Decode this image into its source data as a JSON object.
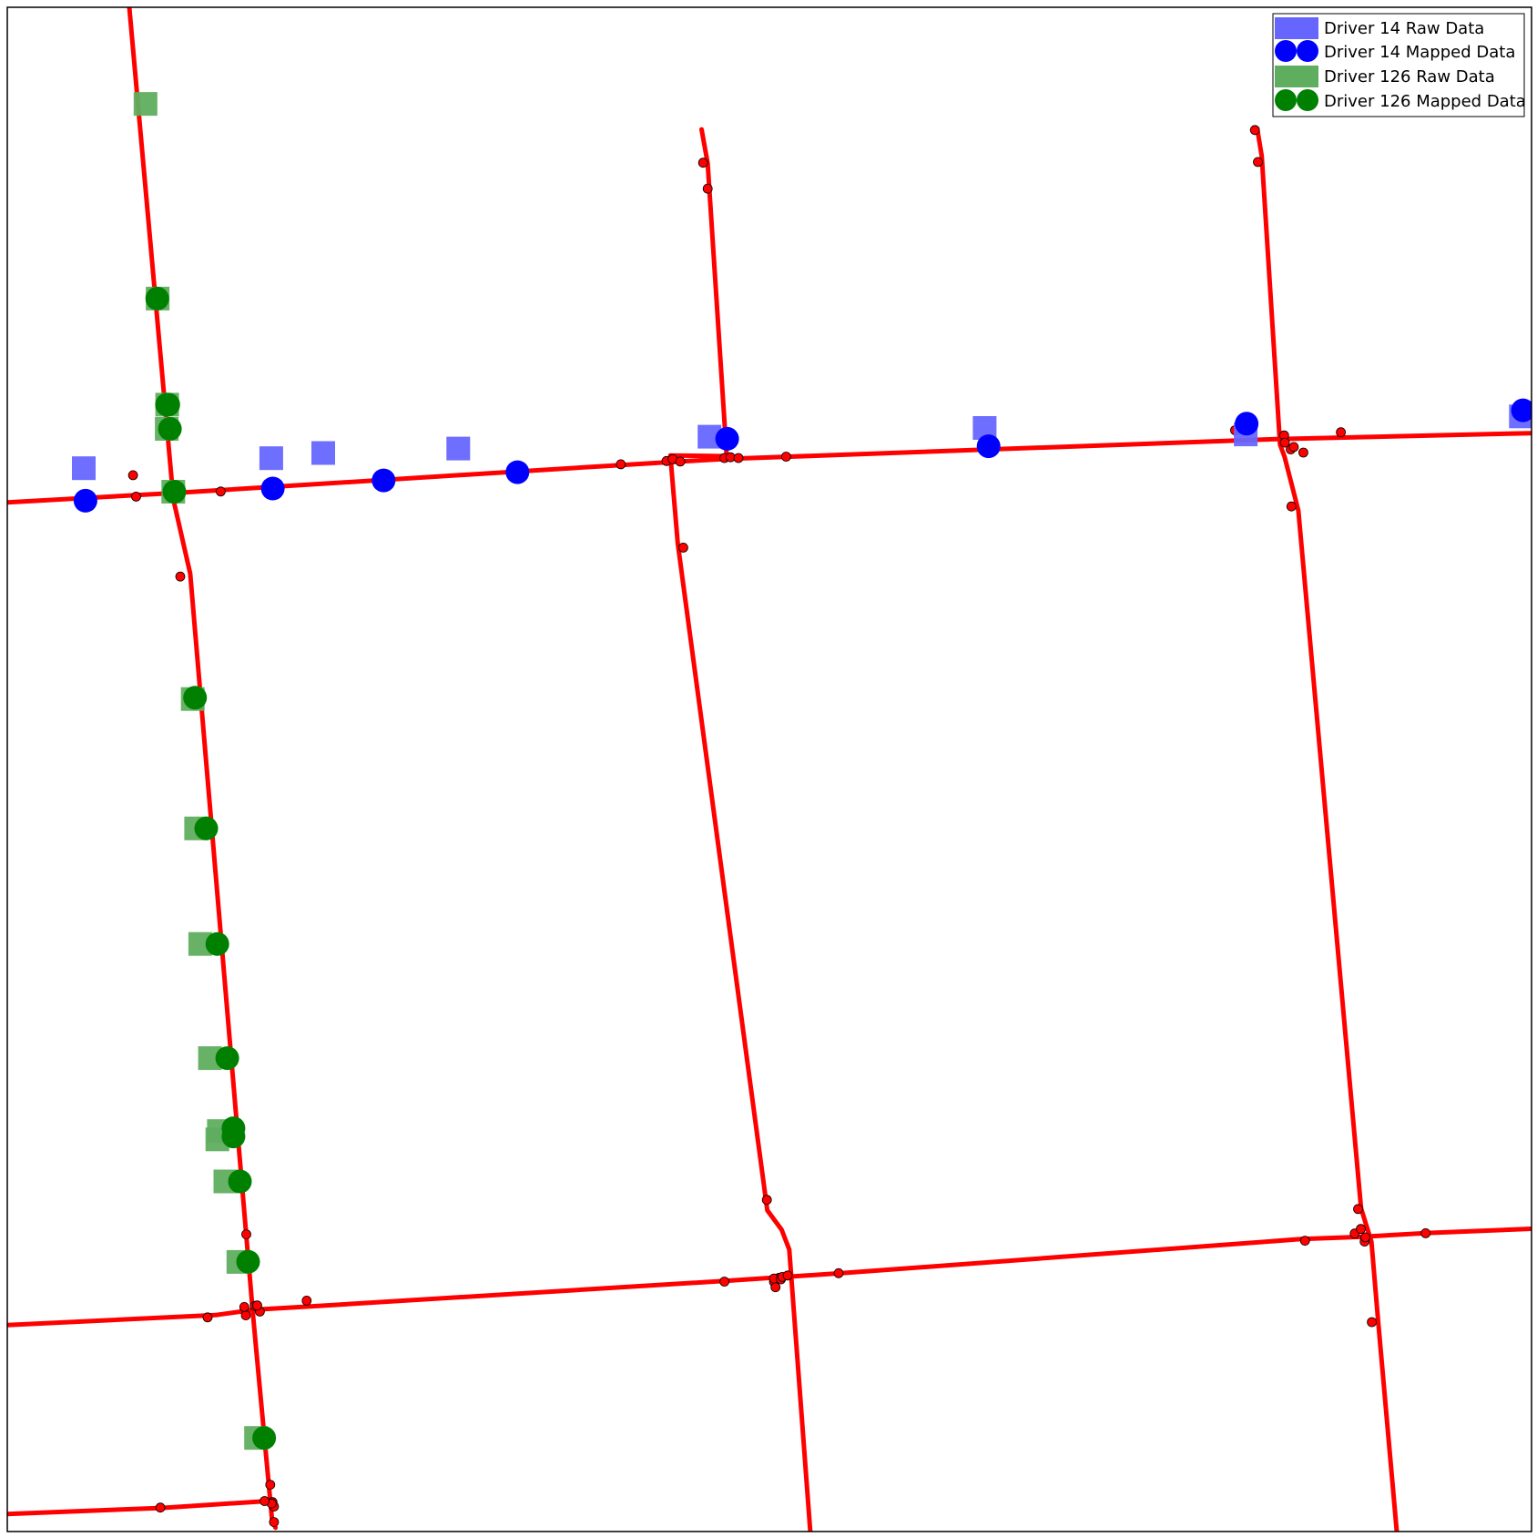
{
  "chart_data": {
    "type": "scatter",
    "title": "",
    "xlabel": "",
    "ylabel": "",
    "xlim": [
      0,
      1000
    ],
    "ylim": [
      0,
      1000
    ],
    "grid": false,
    "axes_ticks": false,
    "legend": {
      "placement": "top-right",
      "entries": [
        {
          "label": "Driver 14 Raw Data",
          "marker": "square",
          "color": "#6666ff"
        },
        {
          "label": "Driver 14 Mapped Data",
          "marker": "circle",
          "color": "#0000ff"
        },
        {
          "label": "Driver 126 Raw Data",
          "marker": "square",
          "color": "#5fae5f"
        },
        {
          "label": "Driver 126 Mapped Data",
          "marker": "circle",
          "color": "#008000"
        }
      ]
    },
    "road_network": {
      "color": "#ff0000",
      "node_color": "#ff0000",
      "segments": [
        [
          [
            79.5,
            1006
          ],
          [
            109,
            676.8
          ],
          [
            120,
            628.5
          ],
          [
            161.3,
            141.2
          ],
          [
            173.8,
            7
          ],
          [
            176,
            2.5
          ]
        ],
        [
          [
            0,
            675.2
          ],
          [
            109,
            681.3
          ],
          [
            398,
            699.4
          ],
          [
            432,
            701.5
          ],
          [
            472,
            703.7
          ],
          [
            830,
            716.6
          ],
          [
            1000,
            720.6
          ]
        ],
        [
          [
            455.5,
            919.9
          ],
          [
            459.5,
            897.7
          ],
          [
            472,
            705.5
          ],
          [
            435,
            706
          ],
          [
            439.9,
            648
          ],
          [
            498.6,
            210.7
          ],
          [
            508,
            198
          ],
          [
            513,
            185
          ],
          [
            526.8,
            0
          ]
        ],
        [
          [
            820,
            920.5
          ],
          [
            823,
            902.4
          ],
          [
            835,
            713
          ],
          [
            838,
            705
          ],
          [
            847,
            669.9
          ],
          [
            888.2,
            212
          ],
          [
            895,
            190
          ],
          [
            899.3,
            139
          ],
          [
            911.6,
            0
          ]
        ],
        [
          [
            0,
            135.5
          ],
          [
            136.5,
            142
          ],
          [
            162,
            145.5
          ],
          [
            204,
            148
          ],
          [
            473,
            164.6
          ],
          [
            510,
            167
          ],
          [
            547,
            169.5
          ],
          [
            849,
            191.9
          ],
          [
            888,
            193.3
          ],
          [
            932,
            195.9
          ],
          [
            1000,
            198.6
          ]
        ],
        [
          [
            0,
            11.5
          ],
          [
            101,
            15.5
          ],
          [
            171,
            20
          ]
        ]
      ],
      "nodes": [
        [
          456.5,
          898
        ],
        [
          459.5,
          881
        ],
        [
          402.5,
          700.2
        ],
        [
          432.5,
          702.3
        ],
        [
          436.5,
          703.5
        ],
        [
          441.5,
          702
        ],
        [
          443.5,
          645.5
        ],
        [
          470.5,
          704.3
        ],
        [
          474.5,
          704.8
        ],
        [
          479.7,
          704.3
        ],
        [
          511,
          705.2
        ],
        [
          818.5,
          919.5
        ],
        [
          820.5,
          898.5
        ],
        [
          850.3,
          707.9
        ],
        [
          842.5,
          672.5
        ],
        [
          805.5,
          722.5
        ],
        [
          837.7,
          719.2
        ],
        [
          874.9,
          721.2
        ],
        [
          842,
          710
        ],
        [
          844,
          711.5
        ],
        [
          838.2,
          714.4
        ],
        [
          84.5,
          679
        ],
        [
          140,
          682.3
        ],
        [
          113.5,
          626.5
        ],
        [
          82.5,
          693
        ],
        [
          498.3,
          217.6
        ],
        [
          506.4,
          166.5
        ],
        [
          503,
          163.8
        ],
        [
          504,
          160.3
        ],
        [
          503,
          166
        ],
        [
          507.5,
          165.5
        ],
        [
          508.5,
          167
        ],
        [
          512,
          168
        ],
        [
          545.4,
          169.5
        ],
        [
          470.5,
          164
        ],
        [
          886.2,
          211.6
        ],
        [
          890.5,
          190.2
        ],
        [
          891,
          193
        ],
        [
          884,
          195.5
        ],
        [
          888,
          198.5
        ],
        [
          930.5,
          195.7
        ],
        [
          851.4,
          190.8
        ],
        [
          895.2,
          137.4
        ],
        [
          156.8,
          195
        ],
        [
          165.7,
          144.3
        ],
        [
          162.5,
          148
        ],
        [
          156.5,
          141.8
        ],
        [
          155.5,
          147.3
        ],
        [
          164,
          148.3
        ],
        [
          196.4,
          151.5
        ],
        [
          131.4,
          140.5
        ],
        [
          172.5,
          30.7
        ],
        [
          174,
          19.3
        ],
        [
          175,
          16.4
        ],
        [
          173.4,
          18.4
        ],
        [
          175,
          6.2
        ],
        [
          100.4,
          15.7
        ],
        [
          168.8,
          20
        ]
      ]
    },
    "series": [
      {
        "name": "Driver 14 Raw Data",
        "marker": "square",
        "color": "#6666ff",
        "x": [
          50.2,
          173.2,
          207.3,
          295.9,
          460.7,
          641.2,
          812.5,
          993
        ],
        "y": [
          697.6,
          704.2,
          707.6,
          710.5,
          718.3,
          724,
          719.8,
          731.6
        ]
      },
      {
        "name": "Driver 14 Mapped Data",
        "marker": "circle",
        "color": "#0000ff",
        "x": [
          51.3,
          174.2,
          246.9,
          334.7,
          472.3,
          643.8,
          813.1,
          994.4
        ],
        "y": [
          676.3,
          684.3,
          689.6,
          695,
          716.9,
          712,
          726.8,
          735.6
        ]
      },
      {
        "name": "Driver 126 Raw Data",
        "marker": "square",
        "color": "#5fae5f",
        "x": [
          90.7,
          98.6,
          104.9,
          104.6,
          108.9,
          121.7,
          123.9,
          126.6,
          133,
          138.8,
          137.8,
          143.1,
          151.6,
          163.2
        ],
        "y": [
          936.6,
          808.9,
          739.3,
          723.4,
          682.2,
          546.2,
          461.3,
          385.5,
          310.6,
          262.7,
          257.3,
          229.7,
          176.9,
          61.4
        ]
      },
      {
        "name": "Driver 126 Mapped Data",
        "marker": "circle",
        "color": "#008000",
        "x": [
          98.4,
          104.8,
          106.7,
          105.6,
          109.6,
          123.2,
          130.5,
          137.8,
          144.3,
          148.4,
          148.4,
          152.6,
          158,
          168.5
        ],
        "y": [
          808.9,
          739.3,
          723.4,
          739.3,
          682.2,
          547.1,
          461.3,
          385.5,
          310.6,
          264.6,
          259.2,
          229.7,
          177,
          61.4
        ]
      }
    ]
  }
}
